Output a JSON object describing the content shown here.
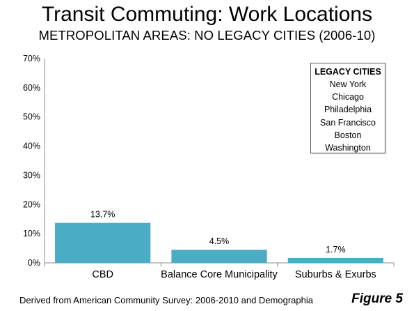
{
  "chart_data": {
    "type": "bar",
    "title": "Transit Commuting: Work Locations",
    "subtitle": "METROPOLITAN AREAS: NO LEGACY CITIES (2006-10)",
    "categories": [
      "CBD",
      "Balance Core Municipality",
      "Suburbs & Exurbs"
    ],
    "values": [
      13.7,
      4.5,
      1.7
    ],
    "data_labels": [
      "13.7%",
      "4.5%",
      "1.7%"
    ],
    "ylim": [
      0,
      70
    ],
    "yticks": [
      0,
      10,
      20,
      30,
      40,
      50,
      60,
      70
    ],
    "ytick_labels": [
      "0%",
      "10%",
      "20%",
      "30%",
      "40%",
      "50%",
      "60%",
      "70%"
    ],
    "xlabel": "",
    "ylabel": "",
    "grid": false,
    "bar_color": "#4bacc6"
  },
  "legend_box": {
    "title": "LEGACY CITIES",
    "items": [
      "New York",
      "Chicago",
      "Philadelphia",
      "San Francisco",
      "Boston",
      "Washington"
    ]
  },
  "footer": {
    "source": "Derived from American Community Survey: 2006-2010 and Demographia",
    "figure_label": "Figure 5"
  }
}
